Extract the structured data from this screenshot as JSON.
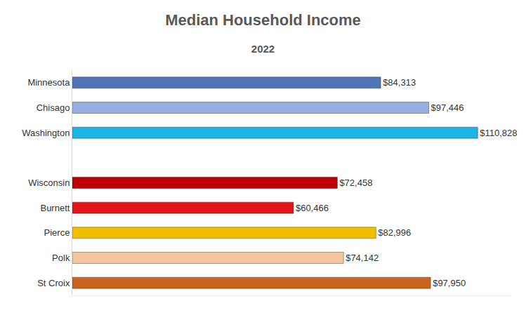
{
  "chart_data": {
    "type": "bar",
    "title": "Median Household Income",
    "subtitle": "2022",
    "orientation": "horizontal",
    "categories": [
      "Minnesota",
      "Chisago",
      "Washington",
      null,
      "Wisconsin",
      "Burnett",
      "Pierce",
      "Polk",
      "St Croix"
    ],
    "values": [
      84313,
      97446,
      110828,
      null,
      72458,
      60466,
      82996,
      74142,
      97950
    ],
    "value_labels": [
      "$84,313",
      "$97,446",
      "$110,828",
      null,
      "$72,458",
      "$60,466",
      "$82,996",
      "$74,142",
      "$97,950"
    ],
    "colors": [
      "#4f74b8",
      "#98aee0",
      "#1cb5e6",
      null,
      "#c00000",
      "#e3141c",
      "#f0c000",
      "#f4c49c",
      "#c8641e"
    ],
    "xlim": [
      0,
      120000
    ],
    "data_labels": true,
    "tick_labels": "y",
    "grid": false
  }
}
